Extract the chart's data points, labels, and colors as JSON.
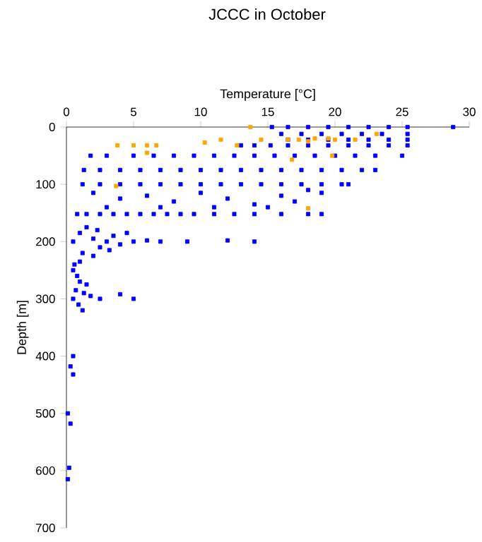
{
  "chart_data": {
    "type": "scatter",
    "title": "JCCC in October",
    "xlabel": "Temperature [°C]",
    "ylabel": "Depth [m]",
    "xlim": [
      0,
      30
    ],
    "xticks": [
      0,
      5,
      10,
      15,
      20,
      25,
      30
    ],
    "ylim": [
      700,
      0
    ],
    "yticks": [
      0,
      100,
      200,
      300,
      400,
      500,
      600,
      700
    ],
    "marker": "square",
    "series": [
      {
        "color": "#0000ff",
        "x": [
          15.3,
          16.5,
          18,
          19.5,
          21,
          22.5,
          24,
          25.4,
          28.8,
          16,
          17.5,
          19,
          20.5,
          22,
          23.5,
          25.4,
          16.5,
          18,
          19.5,
          21,
          22.5,
          24,
          25.4,
          13,
          14,
          15.2,
          16.5,
          18,
          19.5,
          21,
          22.5,
          24,
          25.4,
          1.8,
          3,
          5,
          6.5,
          8,
          9.5,
          11,
          12.5,
          14,
          15.5,
          17,
          18.5,
          20,
          21.5,
          23,
          25,
          1.3,
          2.5,
          4,
          5.5,
          7,
          8.5,
          10,
          11.5,
          13,
          14.5,
          16,
          17.5,
          19,
          20.5,
          22,
          23,
          1.2,
          2.5,
          4,
          5.5,
          7,
          8.5,
          10,
          11.5,
          13,
          14.5,
          16,
          17.5,
          19,
          20.5,
          21,
          2,
          4,
          6,
          8,
          10,
          12,
          14,
          16,
          17,
          19,
          15,
          11,
          7,
          3,
          18,
          0.8,
          1.5,
          2.5,
          3.5,
          4.5,
          5.5,
          6.5,
          7.5,
          8.5,
          9.5,
          11,
          12.5,
          14,
          16,
          18,
          19,
          0.5,
          1,
          1.5,
          2,
          2.5,
          3,
          3.5,
          4,
          1.2,
          2,
          5,
          6,
          7,
          9,
          12,
          14,
          2.3,
          3.2,
          4.5,
          1,
          0.5,
          0.8,
          1,
          0.7,
          1.3,
          1.8,
          0.9,
          1.2,
          2.5,
          4,
          5,
          0.6,
          1.5,
          0.5,
          0.5,
          0.3,
          0.5,
          0.1,
          0.3,
          0.2,
          0.1
        ],
        "values": [
          0,
          0,
          0,
          0,
          0,
          0,
          0,
          0,
          0,
          12,
          12,
          12,
          12,
          12,
          12,
          12,
          22,
          22,
          22,
          22,
          22,
          22,
          22,
          32,
          32,
          32,
          32,
          32,
          32,
          32,
          32,
          32,
          32,
          50,
          50,
          50,
          50,
          50,
          50,
          50,
          50,
          50,
          50,
          50,
          50,
          50,
          50,
          50,
          50,
          75,
          75,
          75,
          75,
          75,
          75,
          75,
          75,
          75,
          75,
          75,
          75,
          75,
          75,
          75,
          75,
          100,
          100,
          100,
          100,
          100,
          100,
          100,
          100,
          100,
          100,
          100,
          100,
          100,
          100,
          100,
          115,
          125,
          120,
          130,
          115,
          125,
          135,
          120,
          130,
          115,
          140,
          140,
          140,
          140,
          110,
          152,
          152,
          152,
          152,
          152,
          152,
          152,
          152,
          152,
          152,
          152,
          152,
          152,
          152,
          152,
          152,
          200,
          185,
          175,
          195,
          210,
          200,
          190,
          205,
          220,
          225,
          200,
          198,
          200,
          200,
          198,
          200,
          180,
          215,
          185,
          235,
          250,
          260,
          270,
          285,
          290,
          295,
          310,
          320,
          300,
          292,
          300,
          240,
          275,
          300,
          400,
          418,
          432,
          500,
          518,
          595,
          615
        ]
      },
      {
        "color": "#ffa500",
        "x": [
          13.7,
          3.8,
          5,
          6,
          6.7,
          10.3,
          11.5,
          12.7,
          14.5,
          16.5,
          17.3,
          18,
          18.5,
          19.5,
          20,
          21.5,
          23.1,
          6,
          16.8,
          19.8,
          3.7,
          18
        ],
        "values": [
          0,
          32,
          32,
          32,
          32,
          27,
          22,
          32,
          22,
          22,
          22,
          25,
          20,
          20,
          22,
          22,
          12,
          45,
          57,
          50,
          103,
          142
        ]
      }
    ]
  }
}
